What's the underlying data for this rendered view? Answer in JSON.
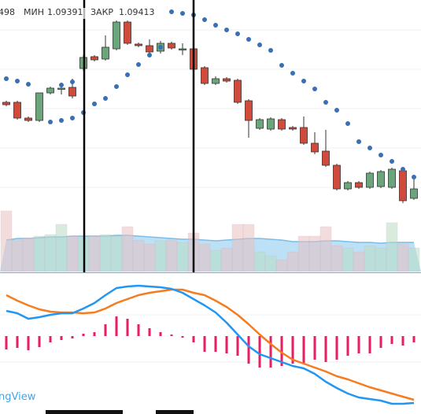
{
  "header": {
    "fragment": 498,
    "low_label": "МИН",
    "low": 1.09391,
    "close_label": "ЗАКР",
    "close": 1.09413
  },
  "watermark": "ngView",
  "chart_data": [
    {
      "type": "candlestick",
      "categories": [
        null,
        null,
        null,
        null,
        null,
        null,
        null,
        null,
        null,
        null,
        null,
        null,
        null,
        null,
        null,
        null,
        null,
        null,
        null,
        null,
        null,
        null,
        null,
        null,
        null,
        null,
        null,
        null,
        null,
        null,
        null,
        null,
        null,
        null,
        null,
        null,
        null,
        null
      ],
      "open": [
        215,
        215,
        195,
        192,
        227,
        232,
        234,
        258,
        273,
        270,
        283,
        317,
        289,
        287,
        280,
        290,
        282,
        283,
        259,
        239,
        245,
        243,
        217,
        182,
        181,
        193,
        183,
        183,
        163,
        153,
        135,
        105,
        113,
        107,
        108,
        107,
        128,
        93
      ],
      "high": [
        217,
        217,
        197,
        227,
        235,
        240,
        245,
        275,
        275,
        300,
        319,
        319,
        291,
        295,
        293,
        292,
        290,
        290,
        261,
        248,
        247,
        245,
        219,
        195,
        196,
        195,
        185,
        197,
        177,
        180,
        137,
        115,
        115,
        127,
        129,
        132,
        130,
        117
      ],
      "low": [
        210,
        193,
        190,
        190,
        225,
        225,
        220,
        255,
        267,
        268,
        281,
        288,
        285,
        273,
        277,
        282,
        275,
        250,
        237,
        237,
        240,
        213,
        170,
        180,
        179,
        179,
        179,
        161,
        149,
        133,
        103,
        103,
        105,
        105,
        106,
        105,
        87,
        91
      ],
      "close": [
        212,
        195,
        192,
        227,
        233,
        233,
        223,
        272,
        269,
        285,
        317,
        290,
        287,
        279,
        290,
        284,
        283,
        257,
        239,
        245,
        242,
        215,
        192,
        193,
        194,
        181,
        181,
        163,
        152,
        135,
        105,
        113,
        107,
        125,
        127,
        130,
        90,
        105
      ],
      "up_color": "#6aa57b",
      "down_color": "#d14b3c",
      "series": [
        {
          "color": "#3a6fb5",
          "values": [
            245,
            242,
            238,
            null,
            null,
            237,
            241,
            null,
            null,
            null,
            null,
            null,
            null,
            null,
            null,
            330,
            328,
            326,
            320,
            313,
            307,
            302,
            295,
            288,
            281,
            262,
            252,
            242,
            232,
            215,
            205,
            188,
            165,
            157,
            148,
            140,
            130,
            120
          ]
        },
        {
          "color": "#3a6fb5",
          "values": [
            null,
            null,
            null,
            null,
            190,
            192,
            195,
            202,
            213,
            220,
            235,
            250,
            263,
            275,
            285,
            null,
            null,
            null,
            null,
            null,
            null,
            null,
            null,
            null,
            null,
            null,
            null,
            null,
            null,
            null,
            null,
            null,
            null,
            null,
            null,
            null,
            null,
            null
          ]
        }
      ],
      "ylim": [
        0,
        345
      ]
    },
    {
      "type": "volume",
      "values": [
        77,
        40,
        43,
        45,
        47,
        60,
        45,
        43,
        45,
        47,
        45,
        57,
        40,
        35,
        39,
        40,
        37,
        49,
        35,
        27,
        30,
        60,
        60,
        25,
        20,
        15,
        25,
        45,
        45,
        57,
        33,
        30,
        25,
        33,
        30,
        62,
        35,
        30
      ],
      "ma": [
        40,
        42,
        42,
        43,
        44,
        44,
        45,
        45,
        45,
        45,
        46,
        46,
        45,
        44,
        43,
        42,
        41,
        41,
        40,
        39,
        40,
        41,
        42,
        42,
        41,
        40,
        38,
        38,
        38,
        39,
        39,
        38,
        37,
        37,
        36,
        37,
        37,
        37
      ],
      "ma_color": "#8fcdf0",
      "up_color": "#b9dcc3",
      "down_color": "#e8c0c0",
      "ylim": [
        0,
        345
      ]
    },
    {
      "type": "macd",
      "series": [
        {
          "color": "#2196f3",
          "values": [
            32,
            29,
            22,
            24,
            27,
            29,
            29,
            35,
            42,
            52,
            61,
            63,
            64,
            63,
            62,
            60,
            55,
            47,
            39,
            30,
            17,
            2,
            -13,
            -23,
            -28,
            -33,
            -38,
            -41,
            -48,
            -58,
            -66,
            -73,
            -78,
            -80,
            -82,
            -86,
            -86,
            -85
          ]
        },
        {
          "color": "#f57c1f",
          "values": [
            52,
            45,
            39,
            34,
            31,
            30,
            30,
            29,
            30,
            35,
            42,
            47,
            52,
            55,
            57,
            59,
            59,
            55,
            52,
            45,
            37,
            27,
            15,
            2,
            -10,
            -21,
            -30,
            -35,
            -40,
            -45,
            -51,
            -55,
            -60,
            -65,
            -69,
            -73,
            -77,
            -81
          ]
        }
      ],
      "histogram": [
        -17,
        -15,
        -18,
        -14,
        -8,
        -5,
        -3,
        3,
        5,
        15,
        25,
        22,
        15,
        10,
        5,
        2,
        -2,
        -8,
        -20,
        -20,
        -22,
        -25,
        -35,
        -40,
        -40,
        -38,
        -35,
        -35,
        -30,
        -33,
        -30,
        -25,
        -22,
        -22,
        -15,
        -10,
        -12,
        -8
      ],
      "histogram_color": "#e91e63",
      "ylim": [
        -93,
        80
      ]
    }
  ]
}
